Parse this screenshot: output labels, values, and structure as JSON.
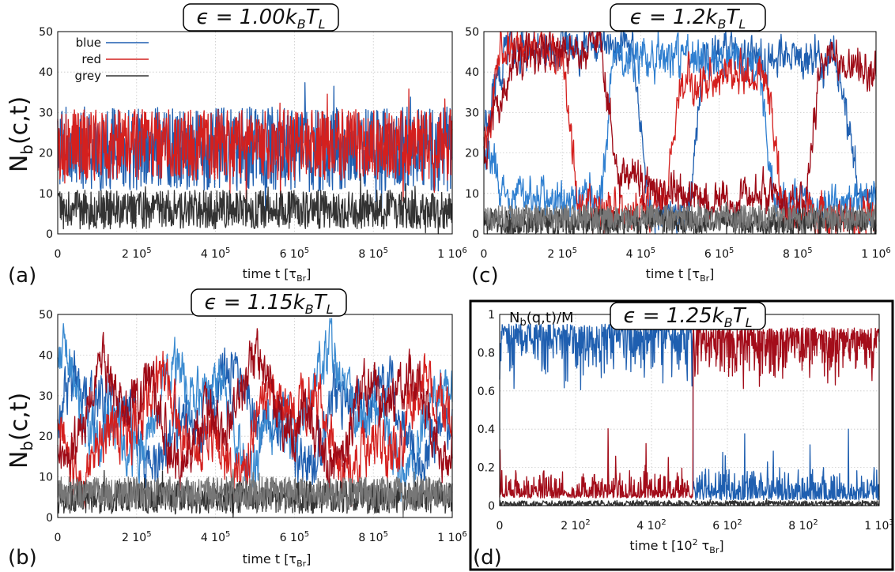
{
  "figure": {
    "panels": [
      {
        "id": "a",
        "letter": "(a)",
        "title": "ϵ = 1.00k_BT_L",
        "title_parts": [
          "ϵ = 1.00",
          "k",
          "B",
          "T",
          "L"
        ],
        "ylabel": "N_b(c,t)",
        "ylabel_parts": [
          "N",
          "b",
          "(c,t)"
        ],
        "xlabel_parts": [
          "time t [τ",
          "Br",
          "]"
        ],
        "framed": false,
        "legend": {
          "entries": [
            {
              "name": "blue",
              "color": "#1f5fb0"
            },
            {
              "name": "red",
              "color": "#d4201e"
            },
            {
              "name": "grey",
              "color": "#333333"
            }
          ]
        }
      },
      {
        "id": "c",
        "letter": "(c)",
        "title": "ϵ = 1.2k_BT_L",
        "title_parts": [
          "ϵ = 1.2",
          "k",
          "B",
          "T",
          "L"
        ],
        "ylabel": "",
        "xlabel_parts": [
          "time t [τ",
          "Br",
          "]"
        ],
        "framed": false
      },
      {
        "id": "b",
        "letter": "(b)",
        "title": "ϵ = 1.15k_BT_L",
        "title_parts": [
          "ϵ = 1.15",
          "k",
          "B",
          "T",
          "L"
        ],
        "ylabel": "N_b(c,t)",
        "ylabel_parts": [
          "N",
          "b",
          "(c,t)"
        ],
        "xlabel_parts": [
          "time t [τ",
          "Br",
          "]"
        ],
        "framed": false
      },
      {
        "id": "d",
        "letter": "(d)",
        "title": "ϵ = 1.25k_BT_L",
        "title_parts": [
          "ϵ = 1.25",
          "k",
          "B",
          "T",
          "L"
        ],
        "ylabel": "N_b(q,t)/M",
        "ylabel_parts": [
          "N",
          "b",
          "(q,t)/M"
        ],
        "xlabel_parts": [
          "time t [10",
          "2",
          " τ",
          "Br",
          "]"
        ],
        "framed": true
      }
    ]
  },
  "chart_data": [
    {
      "panel": "a",
      "type": "line",
      "title": "ϵ = 1.00k_BT_L",
      "xlabel": "time t [τ_Br]",
      "ylabel": "N_b(c,t)",
      "xlim": [
        0,
        1000000
      ],
      "ylim": [
        0,
        50
      ],
      "x_ticks": [
        {
          "label": "0",
          "sup": "",
          "pre": "1 0",
          "value": 0
        },
        {
          "label": "2 10",
          "sup": "5",
          "value": 200000
        },
        {
          "label": "4 10",
          "sup": "5",
          "value": 400000
        },
        {
          "label": "6 10",
          "sup": "5",
          "value": 600000
        },
        {
          "label": "8 10",
          "sup": "5",
          "value": 800000
        },
        {
          "label": "1 10",
          "sup": "6",
          "value": 1000000
        }
      ],
      "y_ticks": [
        "0",
        "10",
        "20",
        "30",
        "40",
        "50"
      ],
      "grid": true,
      "legend_position": "top-left",
      "series": [
        {
          "name": "blue",
          "color": "#1f5fb0",
          "behavior": "fluctuating",
          "mean": 21,
          "spread": 6.5
        },
        {
          "name": "red",
          "color": "#d4201e",
          "behavior": "fluctuating",
          "mean": 22,
          "spread": 5.5
        },
        {
          "name": "grey",
          "color": "#333333",
          "behavior": "fluctuating",
          "mean": 6,
          "spread": 3
        }
      ]
    },
    {
      "panel": "c",
      "type": "line",
      "title": "ϵ = 1.2k_BT_L",
      "xlabel": "time t [τ_Br]",
      "xlim": [
        0,
        1000000
      ],
      "ylim": [
        0,
        50
      ],
      "x_ticks": [
        {
          "label": "0",
          "value": 0
        },
        {
          "label": "2 10",
          "sup": "5",
          "value": 200000
        },
        {
          "label": "4 10",
          "sup": "5",
          "value": 400000
        },
        {
          "label": "6 10",
          "sup": "5",
          "value": 600000
        },
        {
          "label": "8 10",
          "sup": "5",
          "value": 800000
        },
        {
          "label": "1 10",
          "sup": "6",
          "value": 1000000
        }
      ],
      "y_ticks": [
        "0",
        "10",
        "20",
        "30",
        "40",
        "50"
      ],
      "grid": true,
      "series": [
        {
          "color": "#1f5fb0",
          "behavior": "switching",
          "levels": [
            [
              0,
              25
            ],
            [
              0.05,
              45
            ],
            [
              0.38,
              46
            ],
            [
              0.42,
              5
            ],
            [
              0.52,
              5
            ],
            [
              0.56,
              44
            ],
            [
              0.9,
              43
            ],
            [
              0.96,
              10
            ]
          ]
        },
        {
          "color": "#2f7fd0",
          "behavior": "switching",
          "levels": [
            [
              0,
              20
            ],
            [
              0.07,
              8
            ],
            [
              0.3,
              9
            ],
            [
              0.33,
              44
            ],
            [
              0.7,
              42
            ],
            [
              0.74,
              8
            ],
            [
              1,
              7
            ]
          ]
        },
        {
          "color": "#d4201e",
          "behavior": "switching",
          "levels": [
            [
              0,
              20
            ],
            [
              0.04,
              46
            ],
            [
              0.2,
              44
            ],
            [
              0.24,
              6
            ],
            [
              0.46,
              7
            ],
            [
              0.5,
              38
            ],
            [
              0.72,
              40
            ],
            [
              0.76,
              5
            ],
            [
              1,
              4
            ]
          ]
        },
        {
          "color": "#9e0a16",
          "behavior": "switching",
          "levels": [
            [
              0,
              22
            ],
            [
              0.08,
              44
            ],
            [
              0.3,
              46
            ],
            [
              0.34,
              14
            ],
            [
              0.5,
              10
            ],
            [
              0.6,
              8
            ],
            [
              0.82,
              9
            ],
            [
              0.86,
              44
            ],
            [
              1,
              40
            ]
          ]
        },
        {
          "color": "#333333",
          "behavior": "low",
          "mean": 3,
          "spread": 2
        },
        {
          "color": "#777777",
          "behavior": "low",
          "mean": 4,
          "spread": 2
        }
      ]
    },
    {
      "panel": "b",
      "type": "line",
      "title": "ϵ = 1.15k_BT_L",
      "xlabel": "time t [τ_Br]",
      "ylabel": "N_b(c,t)",
      "xlim": [
        0,
        1000000
      ],
      "ylim": [
        0,
        50
      ],
      "x_ticks": [
        {
          "label": "0",
          "value": 0
        },
        {
          "label": "2 10",
          "sup": "5",
          "value": 200000
        },
        {
          "label": "4 10",
          "sup": "5",
          "value": 400000
        },
        {
          "label": "6 10",
          "sup": "5",
          "value": 600000
        },
        {
          "label": "8 10",
          "sup": "5",
          "value": 800000
        },
        {
          "label": "1 10",
          "sup": "6",
          "value": 1000000
        }
      ],
      "y_ticks": [
        "0",
        "10",
        "20",
        "30",
        "40",
        "50"
      ],
      "grid": true,
      "series": [
        {
          "color": "#1f5fb0",
          "behavior": "wandering",
          "mean": 24,
          "spread": 12
        },
        {
          "color": "#3a8ad0",
          "behavior": "wandering",
          "mean": 26,
          "spread": 13
        },
        {
          "color": "#d4201e",
          "behavior": "wandering",
          "mean": 22,
          "spread": 12
        },
        {
          "color": "#9e0a16",
          "behavior": "wandering",
          "mean": 25,
          "spread": 12
        },
        {
          "color": "#333333",
          "behavior": "low",
          "mean": 5,
          "spread": 2.5
        },
        {
          "color": "#777777",
          "behavior": "low",
          "mean": 6,
          "spread": 2.5
        }
      ]
    },
    {
      "panel": "d",
      "type": "line",
      "title": "ϵ = 1.25k_BT_L",
      "xlabel": "time t [10^2 τ_Br]",
      "ylabel": "N_b(q,t)/M",
      "xlim": [
        0,
        1000
      ],
      "ylim": [
        0,
        1
      ],
      "x_ticks": [
        {
          "label": "0",
          "value": 0
        },
        {
          "label": "2 10",
          "sup": "2",
          "value": 200
        },
        {
          "label": "4 10",
          "sup": "2",
          "value": 400
        },
        {
          "label": "6 10",
          "sup": "2",
          "value": 600
        },
        {
          "label": "8 10",
          "sup": "2",
          "value": 800
        },
        {
          "label": "1 10",
          "sup": "3",
          "value": 1000
        }
      ],
      "y_ticks": [
        "0",
        "0.2",
        "0.4",
        "0.6",
        "0.8",
        "1"
      ],
      "grid": true,
      "series": [
        {
          "color": "#1f5fb0",
          "behavior": "switch",
          "switch_at": 510,
          "high_before": 0.95,
          "low_after": 0.03
        },
        {
          "color": "#a30d1a",
          "behavior": "switch",
          "switch_at": 510,
          "low_before": 0.04,
          "high_after": 0.93
        },
        {
          "color": "#333333",
          "behavior": "low",
          "mean": 0.01,
          "spread": 0.01
        }
      ]
    }
  ]
}
